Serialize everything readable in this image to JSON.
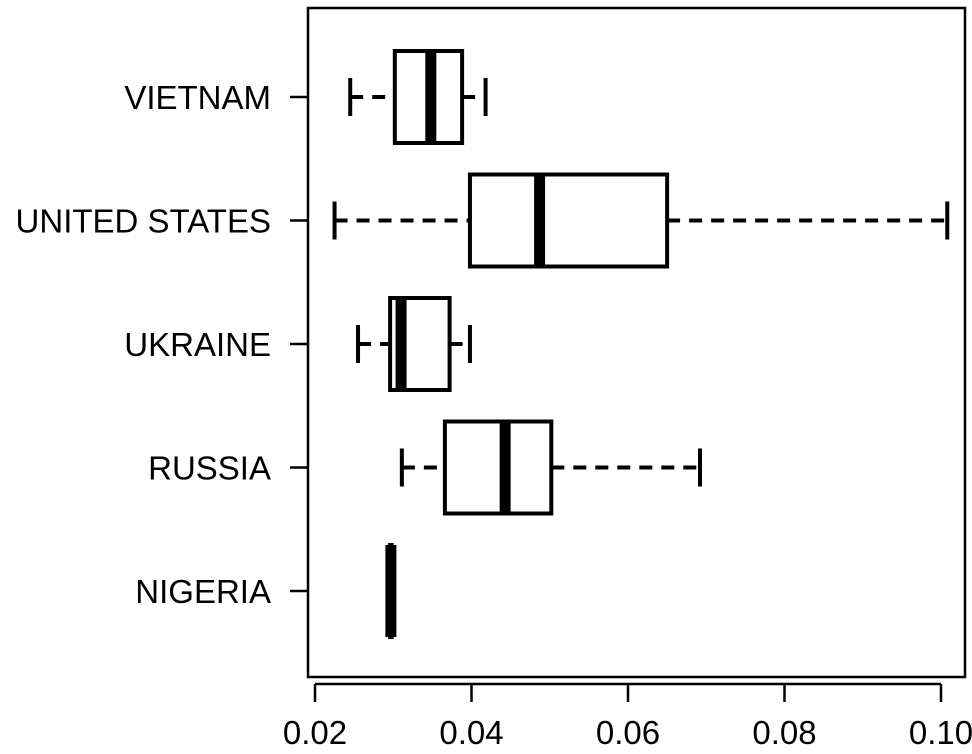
{
  "chart_data": {
    "type": "boxplot",
    "orientation": "horizontal",
    "title": "",
    "xlabel": "",
    "ylabel": "",
    "xlim": [
      0.02,
      0.1
    ],
    "xticks": [
      0.02,
      0.04,
      0.06,
      0.08,
      0.1
    ],
    "xtick_labels": [
      "0.02",
      "0.04",
      "0.06",
      "0.08",
      "0.10"
    ],
    "grid": false,
    "categories": [
      "VIETNAM",
      "UNITED STATES",
      "UKRAINE",
      "RUSSIA",
      "NIGERIA"
    ],
    "boxes": [
      {
        "label": "VIETNAM",
        "whisker_low": 0.0245,
        "q1": 0.0302,
        "median": 0.0348,
        "q3": 0.0388,
        "whisker_high": 0.0418
      },
      {
        "label": "UNITED STATES",
        "whisker_low": 0.0225,
        "q1": 0.0398,
        "median": 0.0487,
        "q3": 0.065,
        "whisker_high": 0.1008
      },
      {
        "label": "UKRAINE",
        "whisker_low": 0.0255,
        "q1": 0.0296,
        "median": 0.031,
        "q3": 0.0372,
        "whisker_high": 0.0398
      },
      {
        "label": "RUSSIA",
        "whisker_low": 0.0311,
        "q1": 0.0366,
        "median": 0.0443,
        "q3": 0.0502,
        "whisker_high": 0.0692
      },
      {
        "label": "NIGERIA",
        "whisker_low": 0.0296,
        "q1": 0.0296,
        "median": 0.0297,
        "q3": 0.0298,
        "whisker_high": 0.0298
      }
    ],
    "colors": {
      "line": "#000000",
      "box_fill": "#ffffff",
      "background": "#ffffff"
    }
  }
}
